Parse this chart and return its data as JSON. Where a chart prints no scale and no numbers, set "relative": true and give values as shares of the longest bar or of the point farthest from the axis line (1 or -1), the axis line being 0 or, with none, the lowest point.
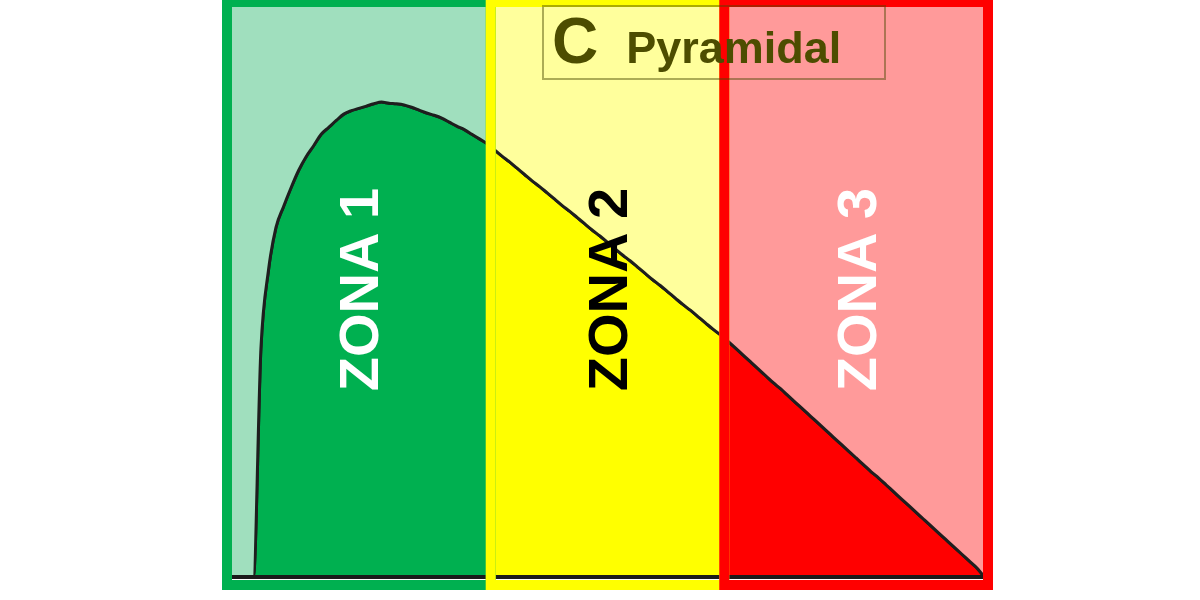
{
  "chart_data": {
    "type": "area",
    "title": "C Pyramidal",
    "relative": true,
    "stacked": true,
    "categories": [
      null,
      null,
      null,
      null,
      null,
      null,
      null,
      null,
      null,
      null,
      null,
      null,
      null,
      null,
      null,
      null,
      null,
      null,
      null,
      null,
      null,
      null,
      null,
      null,
      null,
      null,
      null,
      null,
      null,
      null,
      null,
      null,
      null,
      null,
      null,
      null,
      null,
      null,
      null,
      null,
      null,
      null,
      null,
      null,
      null,
      null,
      null,
      null,
      null,
      null,
      null,
      null,
      null,
      null,
      null,
      null,
      null,
      null,
      null,
      null,
      null,
      null,
      null,
      null,
      null,
      null,
      null,
      null,
      null,
      null,
      null,
      null,
      null,
      null,
      null,
      null,
      null,
      null,
      null,
      null,
      null,
      null,
      null,
      null,
      null,
      null,
      null,
      null,
      null,
      null,
      null,
      null,
      null,
      null,
      null,
      null,
      null,
      null,
      null,
      null,
      null
    ],
    "series": [
      {
        "name": "ZONA 1",
        "color": "#00b050",
        "values": [
          0,
          0,
          0,
          0,
          0.397,
          0.533,
          0.608,
          0.644,
          0.677,
          0.707,
          0.731,
          0.75,
          0.77,
          0.782,
          0.794,
          0.805,
          0.811,
          0.815,
          0.819,
          0.823,
          0.826,
          0.824,
          0.823,
          0.821,
          0.817,
          0.812,
          0.807,
          0.803,
          0.798,
          0.791,
          0.784,
          0.778,
          0.77,
          0.762,
          0.754,
          null,
          null,
          null,
          null,
          null,
          null,
          null,
          null,
          null,
          null,
          null,
          null,
          null,
          null,
          null,
          null,
          null,
          null,
          null,
          null,
          null,
          null,
          null,
          null,
          null,
          null,
          null,
          null,
          null,
          null,
          null,
          null,
          null,
          null,
          null,
          null,
          null,
          null,
          null,
          null,
          null,
          null,
          null,
          null,
          null,
          null,
          null,
          null,
          null,
          null,
          null,
          null,
          null,
          null,
          null,
          null,
          null,
          null,
          null,
          null,
          null,
          null,
          null,
          null,
          null,
          null
        ]
      },
      {
        "color": "#a0dfbe",
        "values": [
          1,
          1,
          1,
          1,
          0.603,
          0.467,
          0.392,
          0.356,
          0.323,
          0.293,
          0.269,
          0.25,
          0.23,
          0.218,
          0.206,
          0.195,
          0.189,
          0.185,
          0.181,
          0.177,
          0.174,
          0.176,
          0.177,
          0.179,
          0.183,
          0.188,
          0.193,
          0.197,
          0.202,
          0.209,
          0.216,
          0.222,
          0.23,
          0.238,
          0.246,
          null,
          null,
          null,
          null,
          null,
          null,
          null,
          null,
          null,
          null,
          null,
          null,
          null,
          null,
          null,
          null,
          null,
          null,
          null,
          null,
          null,
          null,
          null,
          null,
          null,
          null,
          null,
          null,
          null,
          null,
          null,
          null,
          null,
          null,
          null,
          null,
          null,
          null,
          null,
          null,
          null,
          null,
          null,
          null,
          null,
          null,
          null,
          null,
          null,
          null,
          null,
          null,
          null,
          null,
          null,
          null,
          null,
          null,
          null,
          null,
          null,
          null,
          null,
          null,
          null,
          null
        ]
      },
      {
        "name": "ZONA 2",
        "color": "#ffff00",
        "values": [
          null,
          null,
          null,
          null,
          null,
          null,
          null,
          null,
          null,
          null,
          null,
          null,
          null,
          null,
          null,
          null,
          null,
          null,
          null,
          null,
          null,
          null,
          null,
          null,
          null,
          null,
          null,
          null,
          null,
          null,
          null,
          null,
          null,
          null,
          null,
          0.743,
          0.732,
          0.722,
          0.711,
          0.7,
          0.689,
          0.679,
          0.668,
          0.657,
          0.646,
          0.636,
          0.625,
          0.614,
          0.603,
          0.593,
          0.582,
          0.571,
          0.56,
          0.55,
          0.539,
          0.528,
          0.517,
          0.507,
          0.496,
          0.485,
          0.474,
          0.464,
          0.453,
          0.442,
          0.431,
          0.421,
          null,
          null,
          null,
          null,
          null,
          null,
          null,
          null,
          null,
          null,
          null,
          null,
          null,
          null,
          null,
          null,
          null,
          null,
          null,
          null,
          null,
          null,
          null,
          null,
          null,
          null,
          null,
          null,
          null,
          null,
          null,
          null,
          null,
          null,
          null
        ]
      },
      {
        "color": "#ffff9c",
        "values": [
          null,
          null,
          null,
          null,
          null,
          null,
          null,
          null,
          null,
          null,
          null,
          null,
          null,
          null,
          null,
          null,
          null,
          null,
          null,
          null,
          null,
          null,
          null,
          null,
          null,
          null,
          null,
          null,
          null,
          null,
          null,
          null,
          null,
          null,
          null,
          0.257,
          0.268,
          0.278,
          0.289,
          0.3,
          0.311,
          0.321,
          0.332,
          0.343,
          0.354,
          0.364,
          0.375,
          0.386,
          0.397,
          0.407,
          0.418,
          0.429,
          0.44,
          0.45,
          0.461,
          0.472,
          0.483,
          0.493,
          0.504,
          0.515,
          0.526,
          0.536,
          0.547,
          0.558,
          0.569,
          0.579,
          null,
          null,
          null,
          null,
          null,
          null,
          null,
          null,
          null,
          null,
          null,
          null,
          null,
          null,
          null,
          null,
          null,
          null,
          null,
          null,
          null,
          null,
          null,
          null,
          null,
          null,
          null,
          null,
          null,
          null,
          null,
          null,
          null,
          null,
          null
        ]
      },
      {
        "name": "ZONA 3",
        "color": "#ff0000",
        "values": [
          null,
          null,
          null,
          null,
          null,
          null,
          null,
          null,
          null,
          null,
          null,
          null,
          null,
          null,
          null,
          null,
          null,
          null,
          null,
          null,
          null,
          null,
          null,
          null,
          null,
          null,
          null,
          null,
          null,
          null,
          null,
          null,
          null,
          null,
          null,
          null,
          null,
          null,
          null,
          null,
          null,
          null,
          null,
          null,
          null,
          null,
          null,
          null,
          null,
          null,
          null,
          null,
          null,
          null,
          null,
          null,
          null,
          null,
          null,
          null,
          null,
          null,
          null,
          null,
          null,
          null,
          0.41,
          0.398,
          0.386,
          0.374,
          0.362,
          0.35,
          0.338,
          0.327,
          0.315,
          0.303,
          0.291,
          0.279,
          0.267,
          0.255,
          0.243,
          0.231,
          0.219,
          0.207,
          0.195,
          0.183,
          0.172,
          0.16,
          0.148,
          0.136,
          0.124,
          0.112,
          0.1,
          0.088,
          0.076,
          0.064,
          0.052,
          0.04,
          0.028,
          0.016,
          0
        ]
      },
      {
        "color": "#ff9a9a",
        "values": [
          null,
          null,
          null,
          null,
          null,
          null,
          null,
          null,
          null,
          null,
          null,
          null,
          null,
          null,
          null,
          null,
          null,
          null,
          null,
          null,
          null,
          null,
          null,
          null,
          null,
          null,
          null,
          null,
          null,
          null,
          null,
          null,
          null,
          null,
          null,
          null,
          null,
          null,
          null,
          null,
          null,
          null,
          null,
          null,
          null,
          null,
          null,
          null,
          null,
          null,
          null,
          null,
          null,
          null,
          null,
          null,
          null,
          null,
          null,
          null,
          null,
          null,
          null,
          null,
          null,
          null,
          0.59,
          0.602,
          0.614,
          0.626,
          0.638,
          0.65,
          0.662,
          0.673,
          0.685,
          0.697,
          0.709,
          0.721,
          0.733,
          0.745,
          0.757,
          0.769,
          0.781,
          0.793,
          0.805,
          0.817,
          0.828,
          0.84,
          0.852,
          0.864,
          0.876,
          0.888,
          0.9,
          0.912,
          0.924,
          0.936,
          0.948,
          0.96,
          0.972,
          0.984,
          1
        ]
      }
    ]
  }
}
